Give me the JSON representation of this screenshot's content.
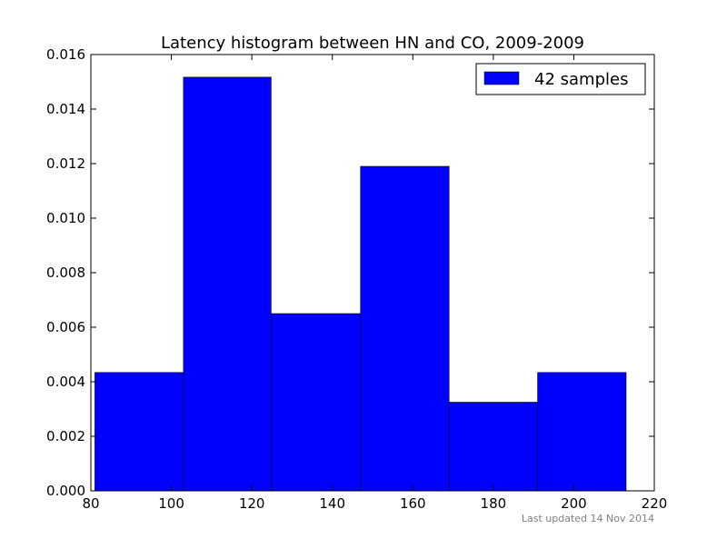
{
  "chart_data": {
    "type": "bar",
    "title": "Latency histogram between HN and CO, 2009-2009",
    "xlabel": "",
    "ylabel": "",
    "xlim": [
      80,
      220
    ],
    "ylim": [
      0,
      0.016
    ],
    "x_ticks": [
      80,
      100,
      120,
      140,
      160,
      180,
      200,
      220
    ],
    "y_ticks": [
      0.0,
      0.002,
      0.004,
      0.006,
      0.008,
      0.01,
      0.012,
      0.014,
      0.016
    ],
    "x_tick_labels": [
      "80",
      "100",
      "120",
      "140",
      "160",
      "180",
      "200",
      "220"
    ],
    "y_tick_labels": [
      "0.000",
      "0.002",
      "0.004",
      "0.006",
      "0.008",
      "0.010",
      "0.012",
      "0.014",
      "0.016"
    ],
    "bins": [
      {
        "start": 81.0,
        "end": 103.0,
        "value": 0.00434
      },
      {
        "start": 103.0,
        "end": 124.8,
        "value": 0.01517
      },
      {
        "start": 124.8,
        "end": 147.0,
        "value": 0.0065
      },
      {
        "start": 147.0,
        "end": 169.0,
        "value": 0.0119
      },
      {
        "start": 169.0,
        "end": 191.0,
        "value": 0.00325
      },
      {
        "start": 191.0,
        "end": 213.0,
        "value": 0.00434
      }
    ],
    "series": [
      {
        "name": "42 samples",
        "color": "#0000ff"
      }
    ],
    "legend": {
      "position": "top-right",
      "label": "42 samples"
    },
    "grid": false
  },
  "footer": {
    "text": "Last updated 14 Nov 2014"
  }
}
